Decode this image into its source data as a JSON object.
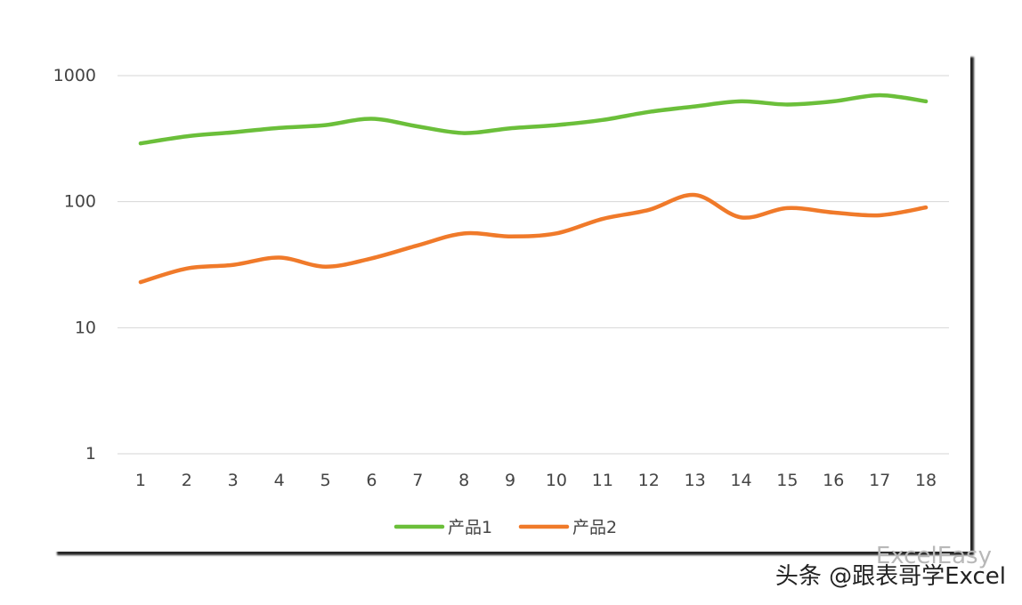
{
  "chart_data": {
    "type": "line",
    "y_scale": "log",
    "ylim": [
      1,
      1000
    ],
    "y_ticks": [
      1,
      10,
      100,
      1000
    ],
    "y_tick_labels": [
      "1",
      "10",
      "100",
      "1000"
    ],
    "categories": [
      "1",
      "2",
      "3",
      "4",
      "5",
      "6",
      "7",
      "8",
      "9",
      "10",
      "11",
      "12",
      "13",
      "14",
      "15",
      "16",
      "17",
      "18"
    ],
    "grid": "horizontal",
    "legend_position": "bottom",
    "series": [
      {
        "name": "产品1",
        "color": "#6bbf3a",
        "values": [
          290,
          330,
          355,
          385,
          405,
          455,
          395,
          350,
          382,
          405,
          445,
          515,
          570,
          625,
          590,
          625,
          700,
          625
        ]
      },
      {
        "name": "产品2",
        "color": "#f07a2a",
        "values": [
          23,
          29.5,
          31.5,
          36,
          30.5,
          35.5,
          45,
          56,
          53,
          56,
          73,
          86,
          113,
          75,
          89,
          82,
          78,
          90
        ]
      }
    ]
  },
  "watermark": {
    "text": "头条 @跟表哥学Excel",
    "ghost_text": "ExcelEasy"
  }
}
